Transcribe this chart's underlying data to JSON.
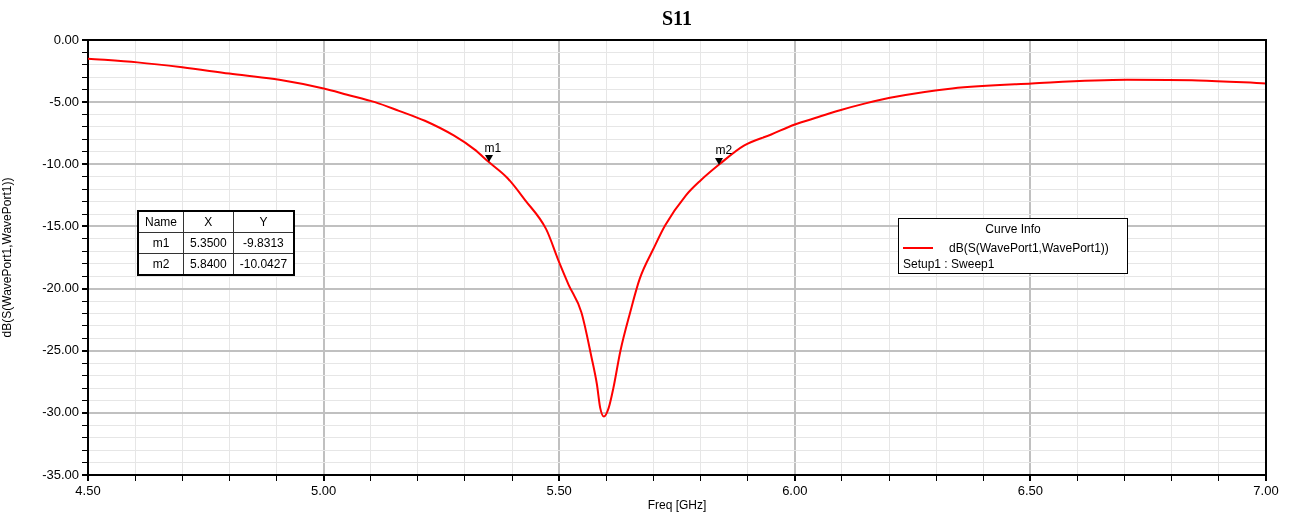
{
  "chart_data": {
    "type": "line",
    "title": "S11",
    "xlabel": "Freq [GHz]",
    "ylabel": "dB(S(WavePort1,WavePort1))",
    "legend_title": "Curve Info",
    "legend": "right",
    "grid": true,
    "marker": "none",
    "line_style": "solid",
    "xlim": [
      4.5,
      7.0
    ],
    "ylim": [
      -35,
      0
    ],
    "xticks": [
      {
        "value": 4.5,
        "label": "4.50"
      },
      {
        "value": 4.6,
        "label": null
      },
      {
        "value": 4.7,
        "label": null
      },
      {
        "value": 4.8,
        "label": null
      },
      {
        "value": 4.9,
        "label": null
      },
      {
        "value": 5.0,
        "label": "5.00"
      },
      {
        "value": 5.1,
        "label": null
      },
      {
        "value": 5.2,
        "label": null
      },
      {
        "value": 5.3,
        "label": null
      },
      {
        "value": 5.4,
        "label": null
      },
      {
        "value": 5.5,
        "label": "5.50"
      },
      {
        "value": 5.6,
        "label": null
      },
      {
        "value": 5.7,
        "label": null
      },
      {
        "value": 5.8,
        "label": null
      },
      {
        "value": 5.9,
        "label": null
      },
      {
        "value": 6.0,
        "label": "6.00"
      },
      {
        "value": 6.1,
        "label": null
      },
      {
        "value": 6.2,
        "label": null
      },
      {
        "value": 6.3,
        "label": null
      },
      {
        "value": 6.4,
        "label": null
      },
      {
        "value": 6.5,
        "label": "6.50"
      },
      {
        "value": 6.6,
        "label": null
      },
      {
        "value": 6.7,
        "label": null
      },
      {
        "value": 6.8,
        "label": null
      },
      {
        "value": 6.9,
        "label": null
      },
      {
        "value": 7.0,
        "label": "7.00"
      }
    ],
    "yticks": [
      {
        "value": 0,
        "label": "0.00"
      },
      {
        "value": -1,
        "label": null
      },
      {
        "value": -2,
        "label": null
      },
      {
        "value": -3,
        "label": null
      },
      {
        "value": -4,
        "label": null
      },
      {
        "value": -5,
        "label": "-5.00"
      },
      {
        "value": -6,
        "label": null
      },
      {
        "value": -7,
        "label": null
      },
      {
        "value": -8,
        "label": null
      },
      {
        "value": -9,
        "label": null
      },
      {
        "value": -10,
        "label": "-10.00"
      },
      {
        "value": -11,
        "label": null
      },
      {
        "value": -12,
        "label": null
      },
      {
        "value": -13,
        "label": null
      },
      {
        "value": -14,
        "label": null
      },
      {
        "value": -15,
        "label": "-15.00"
      },
      {
        "value": -16,
        "label": null
      },
      {
        "value": -17,
        "label": null
      },
      {
        "value": -18,
        "label": null
      },
      {
        "value": -19,
        "label": null
      },
      {
        "value": -20,
        "label": "-20.00"
      },
      {
        "value": -21,
        "label": null
      },
      {
        "value": -22,
        "label": null
      },
      {
        "value": -23,
        "label": null
      },
      {
        "value": -24,
        "label": null
      },
      {
        "value": -25,
        "label": "-25.00"
      },
      {
        "value": -26,
        "label": null
      },
      {
        "value": -27,
        "label": null
      },
      {
        "value": -28,
        "label": null
      },
      {
        "value": -29,
        "label": null
      },
      {
        "value": -30,
        "label": "-30.00"
      },
      {
        "value": -31,
        "label": null
      },
      {
        "value": -32,
        "label": null
      },
      {
        "value": -33,
        "label": null
      },
      {
        "value": -34,
        "label": null
      },
      {
        "value": -35,
        "label": "-35.00"
      }
    ],
    "series": [
      {
        "name": "dB(S(WavePort1,WavePort1))",
        "color": "#ff0000",
        "x": [
          4.5,
          4.605,
          4.7,
          4.8,
          4.906,
          5.0,
          5.05,
          5.109,
          5.16,
          5.215,
          5.277,
          5.32,
          5.35,
          5.39,
          5.428,
          5.472,
          5.5,
          5.52,
          5.547,
          5.569,
          5.58,
          5.587,
          5.595,
          5.605,
          5.615,
          5.63,
          5.65,
          5.671,
          5.7,
          5.725,
          5.769,
          5.8,
          5.84,
          5.892,
          5.95,
          6.0,
          6.05,
          6.096,
          6.15,
          6.202,
          6.334,
          6.503,
          6.705,
          6.856,
          7.0
        ],
        "values": [
          -1.5,
          -1.8,
          -2.2,
          -2.7,
          -3.2,
          -3.9,
          -4.4,
          -5.0,
          -5.7,
          -6.5,
          -7.7,
          -8.8,
          -9.8,
          -11.1,
          -12.9,
          -15.2,
          -17.9,
          -19.7,
          -21.9,
          -25.6,
          -27.7,
          -29.6,
          -30.3,
          -29.6,
          -28.0,
          -25.0,
          -22.0,
          -19.2,
          -16.8,
          -14.9,
          -12.5,
          -11.3,
          -10.0,
          -8.5,
          -7.6,
          -6.8,
          -6.2,
          -5.65,
          -5.1,
          -4.65,
          -3.9,
          -3.5,
          -3.2,
          -3.25,
          -3.5
        ]
      }
    ],
    "annotations": [
      {
        "text": "m1",
        "x": 5.35,
        "y": -9.8313
      },
      {
        "text": "m2",
        "x": 5.84,
        "y": -10.0427
      },
      "Name",
      "X",
      "Y",
      "5.3500",
      "-9.8313",
      "5.8400",
      "-10.0427",
      "Setup1 : Sweep1"
    ]
  }
}
